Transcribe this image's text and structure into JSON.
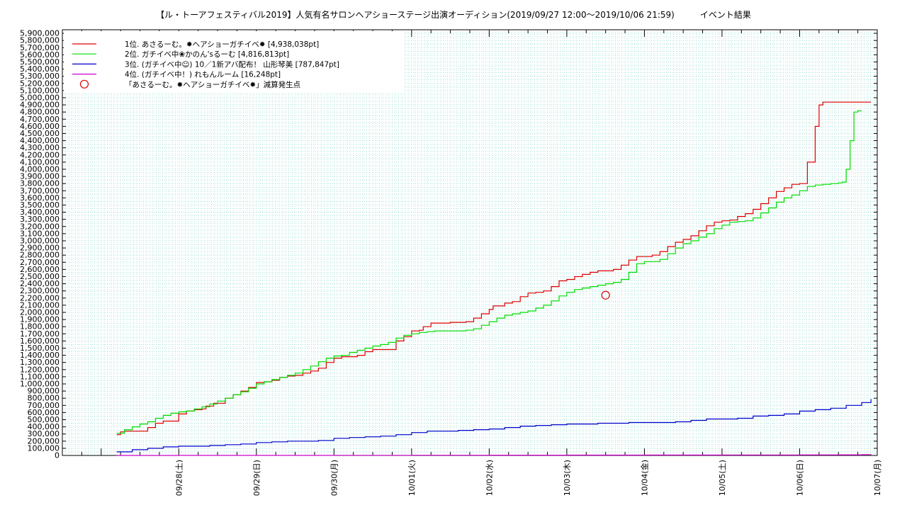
{
  "chart_data": {
    "type": "line",
    "title": "【ル・トーアフェスティバル2019】人気有名サロンヘアショーステージ出演オーディション(2019/09/27 12:00〜2019/10/06 21:59)　　　イベント結果",
    "xlabel": "",
    "ylabel": "",
    "ylim": [
      0,
      5950000
    ],
    "x_range": [
      -1.5,
      9.0
    ],
    "grid": true,
    "legend_position": "top-left",
    "y_ticks": [
      0,
      100000,
      200000,
      300000,
      400000,
      500000,
      600000,
      700000,
      800000,
      900000,
      1000000,
      1100000,
      1200000,
      1300000,
      1400000,
      1500000,
      1600000,
      1700000,
      1800000,
      1900000,
      2000000,
      2100000,
      2200000,
      2300000,
      2400000,
      2500000,
      2600000,
      2700000,
      2800000,
      2900000,
      3000000,
      3100000,
      3200000,
      3300000,
      3400000,
      3500000,
      3600000,
      3700000,
      3800000,
      3900000,
      4000000,
      4100000,
      4200000,
      4300000,
      4400000,
      4500000,
      4600000,
      4700000,
      4800000,
      4900000,
      5000000,
      5100000,
      5200000,
      5300000,
      5400000,
      5500000,
      5600000,
      5700000,
      5800000,
      5900000
    ],
    "y_tick_labels": [
      "0",
      "100,000",
      "200,000",
      "300,000",
      "400,000",
      "500,000",
      "600,000",
      "700,000",
      "800,000",
      "900,000",
      "1,000,000",
      "1,100,000",
      "1,200,000",
      "1,300,000",
      "1,400,000",
      "1,500,000",
      "1,600,000",
      "1,700,000",
      "1,800,000",
      "1,900,000",
      "2,000,000",
      "2,100,000",
      "2,200,000",
      "2,300,000",
      "2,400,000",
      "2,500,000",
      "2,600,000",
      "2,700,000",
      "2,800,000",
      "2,900,000",
      "3,000,000",
      "3,100,000",
      "3,200,000",
      "3,300,000",
      "3,400,000",
      "3,500,000",
      "3,600,000",
      "3,700,000",
      "3,800,000",
      "3,900,000",
      "4,000,000",
      "4,100,000",
      "4,200,000",
      "4,300,000",
      "4,400,000",
      "4,500,000",
      "4,600,000",
      "4,700,000",
      "4,800,000",
      "4,900,000",
      "5,000,000",
      "5,100,000",
      "5,200,000",
      "5,300,000",
      "5,400,000",
      "5,500,000",
      "5,600,000",
      "5,700,000",
      "5,800,000",
      "5,900,000"
    ],
    "x_ticks": [
      0,
      1,
      2,
      3,
      4,
      5,
      6,
      7,
      8,
      9
    ],
    "x_tick_labels": [
      "09/28(土)",
      "09/29(日)",
      "09/30(月)",
      "10/01(火)",
      "10/02(水)",
      "10/03(木)",
      "10/04(金)",
      "10/05(土)",
      "10/06(日)",
      "10/07(月)"
    ],
    "series": [
      {
        "name": "1位. あさるーむ。✹ヘアショーガチイベ✹ [4,938,038pt]",
        "color": "#dd0000",
        "x": [
          -0.8,
          -0.75,
          -0.7,
          -0.5,
          -0.4,
          -0.3,
          -0.2,
          0,
          0.1,
          0.2,
          0.3,
          0.35,
          0.45,
          0.6,
          0.7,
          0.8,
          0.9,
          1.0,
          1.1,
          1.2,
          1.3,
          1.4,
          1.5,
          1.6,
          1.7,
          1.8,
          1.9,
          2.0,
          2.1,
          2.2,
          2.3,
          2.4,
          2.5,
          2.6,
          2.7,
          2.8,
          2.9,
          3.0,
          3.1,
          3.15,
          3.25,
          3.4,
          3.5,
          3.7,
          3.8,
          3.9,
          4.0,
          4.05,
          4.2,
          4.3,
          4.4,
          4.5,
          4.6,
          4.7,
          4.8,
          4.9,
          5.0,
          5.1,
          5.2,
          5.3,
          5.4,
          5.5,
          5.6,
          5.7,
          5.8,
          5.9,
          6.0,
          6.1,
          6.2,
          6.3,
          6.4,
          6.5,
          6.6,
          6.7,
          6.8,
          6.9,
          7.0,
          7.1,
          7.2,
          7.3,
          7.4,
          7.5,
          7.6,
          7.7,
          7.8,
          7.9,
          8.0,
          8.1,
          8.2,
          8.25,
          8.3,
          8.4,
          8.5,
          8.6,
          8.7,
          8.75,
          8.8,
          8.85,
          8.87,
          8.88,
          8.9,
          8.92
        ],
        "values": [
          290000,
          330000,
          340000,
          340000,
          390000,
          450000,
          480000,
          580000,
          620000,
          640000,
          650000,
          690000,
          730000,
          800000,
          850000,
          900000,
          950000,
          1020000,
          1030000,
          1050000,
          1090000,
          1110000,
          1120000,
          1150000,
          1180000,
          1220000,
          1300000,
          1360000,
          1380000,
          1380000,
          1400000,
          1450000,
          1480000,
          1480000,
          1480000,
          1600000,
          1660000,
          1740000,
          1750000,
          1800000,
          1850000,
          1850000,
          1860000,
          1870000,
          1920000,
          1980000,
          2040000,
          2090000,
          2130000,
          2150000,
          2220000,
          2270000,
          2280000,
          2300000,
          2360000,
          2440000,
          2460000,
          2500000,
          2530000,
          2560000,
          2580000,
          2580000,
          2600000,
          2660000,
          2730000,
          2780000,
          2780000,
          2800000,
          2850000,
          2920000,
          2980000,
          3020000,
          3070000,
          3140000,
          3210000,
          3260000,
          3280000,
          3290000,
          3340000,
          3380000,
          3440000,
          3520000,
          3600000,
          3690000,
          3740000,
          3790000,
          3800000,
          4100000,
          4600000,
          4900000,
          4938038,
          4938038,
          4938038,
          4938038,
          4938038,
          4938038,
          4938038,
          4938038,
          4938038,
          4938038,
          4938038,
          4938038
        ]
      },
      {
        "name": "2位. ガチイベ中❀かのん'sるーむ [4,816,813pt]",
        "color": "#00dd00",
        "x": [
          -0.8,
          -0.7,
          -0.6,
          -0.5,
          -0.4,
          -0.3,
          -0.2,
          -0.1,
          0,
          0.1,
          0.2,
          0.3,
          0.4,
          0.5,
          0.6,
          0.7,
          0.8,
          0.9,
          1.0,
          1.1,
          1.2,
          1.3,
          1.4,
          1.5,
          1.6,
          1.7,
          1.8,
          1.9,
          2.0,
          2.1,
          2.2,
          2.3,
          2.4,
          2.5,
          2.6,
          2.7,
          2.8,
          2.9,
          3.0,
          3.1,
          3.2,
          3.3,
          3.4,
          3.5,
          3.6,
          3.7,
          3.8,
          3.9,
          4.0,
          4.1,
          4.2,
          4.3,
          4.4,
          4.5,
          4.6,
          4.7,
          4.8,
          4.9,
          5.0,
          5.1,
          5.2,
          5.3,
          5.4,
          5.5,
          5.6,
          5.7,
          5.8,
          5.9,
          6.0,
          6.1,
          6.2,
          6.3,
          6.4,
          6.5,
          6.6,
          6.7,
          6.8,
          6.9,
          7.0,
          7.1,
          7.2,
          7.3,
          7.4,
          7.5,
          7.6,
          7.7,
          7.8,
          7.9,
          8.0,
          8.1,
          8.2,
          8.3,
          8.4,
          8.5,
          8.55,
          8.6,
          8.65,
          8.7,
          8.75,
          8.8
        ],
        "values": [
          310000,
          360000,
          400000,
          440000,
          470000,
          520000,
          560000,
          590000,
          610000,
          620000,
          650000,
          680000,
          720000,
          760000,
          800000,
          850000,
          890000,
          940000,
          1000000,
          1030000,
          1060000,
          1090000,
          1120000,
          1150000,
          1200000,
          1250000,
          1310000,
          1360000,
          1390000,
          1400000,
          1440000,
          1470000,
          1500000,
          1530000,
          1550000,
          1580000,
          1640000,
          1680000,
          1700000,
          1720000,
          1730000,
          1740000,
          1740000,
          1740000,
          1740000,
          1750000,
          1770000,
          1820000,
          1870000,
          1920000,
          1960000,
          1980000,
          2000000,
          2020000,
          2060000,
          2100000,
          2160000,
          2230000,
          2280000,
          2320000,
          2340000,
          2360000,
          2380000,
          2400000,
          2420000,
          2460000,
          2560000,
          2680000,
          2710000,
          2710000,
          2740000,
          2820000,
          2900000,
          2960000,
          3000000,
          3050000,
          3100000,
          3170000,
          3220000,
          3260000,
          3270000,
          3280000,
          3320000,
          3390000,
          3460000,
          3540000,
          3600000,
          3640000,
          3700000,
          3760000,
          3780000,
          3790000,
          3800000,
          3810000,
          3820000,
          4000000,
          4400000,
          4800000,
          4816813,
          4816813
        ]
      },
      {
        "name": "3位. (ガチイベ中☺) 10／1新アバ配布！ 山形琴美 [787,847pt]",
        "color": "#0000cc",
        "x": [
          -0.8,
          -0.6,
          -0.4,
          -0.2,
          0,
          0.2,
          0.4,
          0.6,
          0.8,
          1.0,
          1.2,
          1.4,
          1.6,
          1.8,
          2.0,
          2.2,
          2.4,
          2.6,
          2.8,
          3.0,
          3.2,
          3.4,
          3.6,
          3.8,
          4.0,
          4.2,
          4.4,
          4.6,
          4.8,
          5.0,
          5.2,
          5.4,
          5.6,
          5.8,
          6.0,
          6.2,
          6.4,
          6.6,
          6.8,
          7.0,
          7.2,
          7.4,
          7.6,
          7.8,
          8.0,
          8.2,
          8.4,
          8.6,
          8.8,
          8.92
        ],
        "values": [
          50000,
          80000,
          100000,
          120000,
          130000,
          130000,
          140000,
          150000,
          160000,
          180000,
          190000,
          200000,
          200000,
          210000,
          240000,
          250000,
          260000,
          270000,
          290000,
          320000,
          340000,
          340000,
          350000,
          360000,
          370000,
          390000,
          410000,
          420000,
          430000,
          440000,
          440000,
          450000,
          450000,
          460000,
          460000,
          460000,
          470000,
          490000,
          510000,
          510000,
          520000,
          550000,
          560000,
          580000,
          620000,
          640000,
          660000,
          700000,
          740000,
          787847
        ]
      },
      {
        "name": "4位. (ガチイベ中！) れもんルーム [16,248pt]",
        "color": "#cc00cc",
        "x": [
          -0.8,
          0,
          1,
          2,
          3,
          4,
          5,
          6,
          7,
          8,
          8.5,
          8.8,
          8.92
        ],
        "values": [
          0,
          500,
          1000,
          2000,
          3000,
          4000,
          5000,
          6000,
          7000,
          8000,
          9000,
          12000,
          16248
        ]
      }
    ],
    "annotations": [
      {
        "label": "「あさるーむ。✹ヘアショーガチイベ✹」減算発生点",
        "x": 5.5,
        "y": 2240000,
        "color": "#dd0000",
        "marker": "circle"
      }
    ]
  }
}
